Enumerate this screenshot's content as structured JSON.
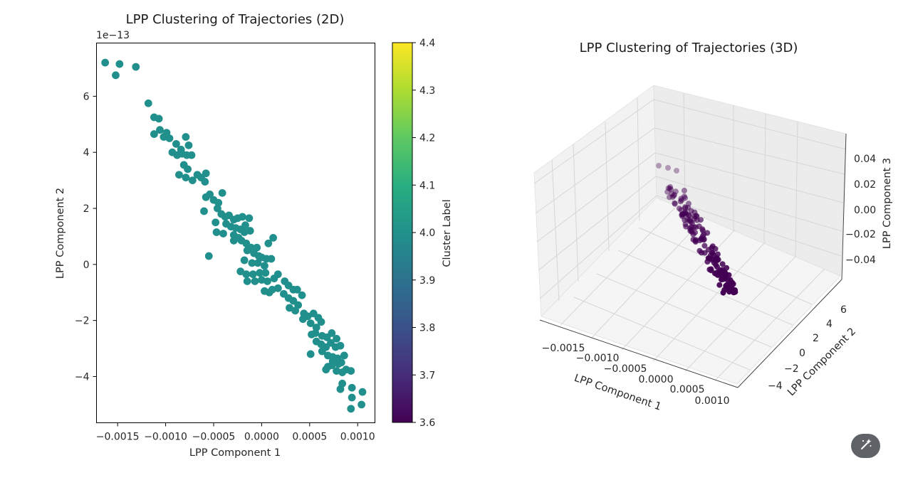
{
  "chart_data": [
    {
      "type": "scatter",
      "title": "LPP Clustering of Trajectories (2D)",
      "xlabel": "LPP Component 1",
      "ylabel": "LPP Component 2",
      "y_offset_text": "1e−13",
      "xlim": [
        -0.00172,
        0.00118
      ],
      "ylim": [
        -5.65,
        7.9
      ],
      "xticks": [
        -0.0015,
        -0.001,
        -0.0005,
        0.0,
        0.0005,
        0.001
      ],
      "xtick_labels": [
        "−0.0015",
        "−0.0010",
        "−0.0005",
        "0.0000",
        "0.0005",
        "0.0010"
      ],
      "yticks": [
        -4,
        -2,
        0,
        2,
        4,
        6
      ],
      "ytick_labels": [
        "−4",
        "−2",
        "0",
        "2",
        "4",
        "6"
      ],
      "point_color": "#21908d",
      "colorbar": {
        "label": "Cluster Label",
        "range": [
          3.6,
          4.4
        ],
        "ticks": [
          "3.6",
          "3.7",
          "3.8",
          "3.9",
          "4.0",
          "4.1",
          "4.2",
          "4.3",
          "4.4"
        ],
        "colormap": "viridis"
      },
      "points": [
        [
          -0.00163,
          7.2
        ],
        [
          -0.00148,
          7.15
        ],
        [
          -0.00152,
          6.75
        ],
        [
          -0.00131,
          7.05
        ],
        [
          -0.00118,
          5.75
        ],
        [
          -0.00112,
          5.25
        ],
        [
          -0.00107,
          5.2
        ],
        [
          -0.00112,
          4.65
        ],
        [
          -0.00106,
          4.8
        ],
        [
          -0.00102,
          4.55
        ],
        [
          -0.00099,
          4.7
        ],
        [
          -0.00096,
          4.5
        ],
        [
          -0.00089,
          4.3
        ],
        [
          -0.00084,
          4.1
        ],
        [
          -0.00079,
          4.55
        ],
        [
          -0.00076,
          4.25
        ],
        [
          -0.00093,
          4.0
        ],
        [
          -0.00088,
          3.9
        ],
        [
          -0.00083,
          3.95
        ],
        [
          -0.00078,
          3.9
        ],
        [
          -0.00073,
          3.9
        ],
        [
          -0.00081,
          3.55
        ],
        [
          -0.00077,
          3.4
        ],
        [
          -0.00086,
          3.2
        ],
        [
          -0.00079,
          3.1
        ],
        [
          -0.00072,
          3.0
        ],
        [
          -0.00067,
          3.2
        ],
        [
          -0.00063,
          3.1
        ],
        [
          -0.00058,
          3.25
        ],
        [
          -0.00059,
          2.95
        ],
        [
          -0.00054,
          2.5
        ],
        [
          -0.00058,
          2.4
        ],
        [
          -0.0005,
          2.3
        ],
        [
          -0.00045,
          2.2
        ],
        [
          -0.00041,
          2.55
        ],
        [
          -0.00046,
          2.0
        ],
        [
          -0.0006,
          1.9
        ],
        [
          -0.00042,
          1.8
        ],
        [
          -0.00038,
          1.7
        ],
        [
          -0.00034,
          1.75
        ],
        [
          -0.00029,
          1.6
        ],
        [
          -0.00025,
          1.65
        ],
        [
          -0.0002,
          1.7
        ],
        [
          -0.00017,
          1.4
        ],
        [
          -0.00013,
          1.65
        ],
        [
          -0.00037,
          1.45
        ],
        [
          -0.00032,
          1.35
        ],
        [
          -0.00027,
          1.3
        ],
        [
          -0.00022,
          1.25
        ],
        [
          -0.00018,
          1.15
        ],
        [
          -0.00012,
          1.2
        ],
        [
          -0.00048,
          1.5
        ],
        [
          -0.00047,
          1.15
        ],
        [
          -0.0004,
          1.1
        ],
        [
          -0.00029,
          1.05
        ],
        [
          -0.00024,
          0.95
        ],
        [
          -0.00021,
          0.85
        ],
        [
          -0.00016,
          0.75
        ],
        [
          -0.00029,
          0.85
        ],
        [
          -0.00011,
          0.6
        ],
        [
          -5e-05,
          0.6
        ],
        [
          7e-05,
          0.75
        ],
        [
          0.00012,
          0.95
        ],
        [
          -0.00055,
          0.3
        ],
        [
          -0.00015,
          0.5
        ],
        [
          -8e-05,
          0.4
        ],
        [
          -3e-05,
          0.3
        ],
        [
          0.0,
          0.25
        ],
        [
          5e-05,
          0.2
        ],
        [
          0.0001,
          0.2
        ],
        [
          -0.00018,
          0.15
        ],
        [
          -0.0001,
          0.05
        ],
        [
          -4e-05,
          0.05
        ],
        [
          3e-05,
          -0.05
        ],
        [
          -0.00022,
          -0.25
        ],
        [
          -0.00016,
          -0.35
        ],
        [
          -9e-05,
          -0.35
        ],
        [
          -2e-05,
          -0.3
        ],
        [
          4e-05,
          -0.3
        ],
        [
          -0.00015,
          -0.6
        ],
        [
          -7e-05,
          -0.6
        ],
        [
          0.0,
          -0.55
        ],
        [
          6e-05,
          -0.6
        ],
        [
          0.00013,
          -0.5
        ],
        [
          0.00017,
          -0.35
        ],
        [
          0.00011,
          -0.9
        ],
        [
          0.00017,
          -0.85
        ],
        [
          0.00024,
          -0.6
        ],
        [
          0.00028,
          -0.75
        ],
        [
          0.00033,
          -0.9
        ],
        [
          0.00037,
          -0.9
        ],
        [
          0.00042,
          -1.1
        ],
        [
          3e-05,
          -0.95
        ],
        [
          8e-05,
          -1.0
        ],
        [
          0.00023,
          -1.05
        ],
        [
          0.00028,
          -1.2
        ],
        [
          0.00033,
          -1.3
        ],
        [
          0.00038,
          -1.45
        ],
        [
          0.00044,
          -1.75
        ],
        [
          0.00029,
          -1.55
        ],
        [
          0.00035,
          -1.65
        ],
        [
          0.00043,
          -1.95
        ],
        [
          0.00048,
          -1.85
        ],
        [
          0.00054,
          -1.75
        ],
        [
          0.00059,
          -1.9
        ],
        [
          0.00051,
          -2.1
        ],
        [
          0.00057,
          -2.25
        ],
        [
          0.00062,
          -2.05
        ],
        [
          0.00056,
          -2.45
        ],
        [
          0.00063,
          -2.55
        ],
        [
          0.00068,
          -2.6
        ],
        [
          0.00073,
          -2.45
        ],
        [
          0.00078,
          -2.65
        ],
        [
          0.00057,
          -2.75
        ],
        [
          0.00062,
          -2.85
        ],
        [
          0.00067,
          -2.95
        ],
        [
          0.00072,
          -2.8
        ],
        [
          0.00077,
          -2.95
        ],
        [
          0.00082,
          -2.9
        ],
        [
          0.00063,
          -3.1
        ],
        [
          0.00069,
          -3.25
        ],
        [
          0.00074,
          -3.3
        ],
        [
          0.00079,
          -3.35
        ],
        [
          0.00083,
          -3.5
        ],
        [
          0.00086,
          -3.25
        ],
        [
          0.0008,
          -3.55
        ],
        [
          0.00074,
          -3.45
        ],
        [
          0.00069,
          -3.65
        ],
        [
          0.00088,
          -3.75
        ],
        [
          0.00084,
          -3.85
        ],
        [
          0.00078,
          -3.8
        ],
        [
          0.00093,
          -3.8
        ],
        [
          0.00073,
          -3.6
        ],
        [
          0.00067,
          -3.75
        ],
        [
          0.00051,
          -3.2
        ],
        [
          0.00052,
          -2.5
        ],
        [
          0.00084,
          -4.25
        ],
        [
          0.00082,
          -4.45
        ],
        [
          0.00094,
          -4.4
        ],
        [
          0.00105,
          -4.55
        ],
        [
          0.00094,
          -4.75
        ],
        [
          0.00104,
          -5.0
        ],
        [
          0.00093,
          -5.15
        ]
      ]
    },
    {
      "type": "scatter",
      "title": "LPP Clustering of Trajectories (3D)",
      "xlabel": "LPP Component 1",
      "ylabel": "LPP Component 2",
      "zlabel": "LPP Component 3",
      "xtick_labels": [
        "−0.0015",
        "−0.0010",
        "−0.0005",
        "0.0000",
        "0.0005",
        "0.0010"
      ],
      "ytick_labels": [
        "−4",
        "−2",
        "0",
        "2",
        "4",
        "6"
      ],
      "ztick_labels": [
        "0.04",
        "0.02",
        "0.00",
        "−0.02",
        "−0.04"
      ],
      "point_color": "#440154"
    }
  ],
  "toolbar": {
    "edit_icon": "magic-wand-edit-icon"
  }
}
